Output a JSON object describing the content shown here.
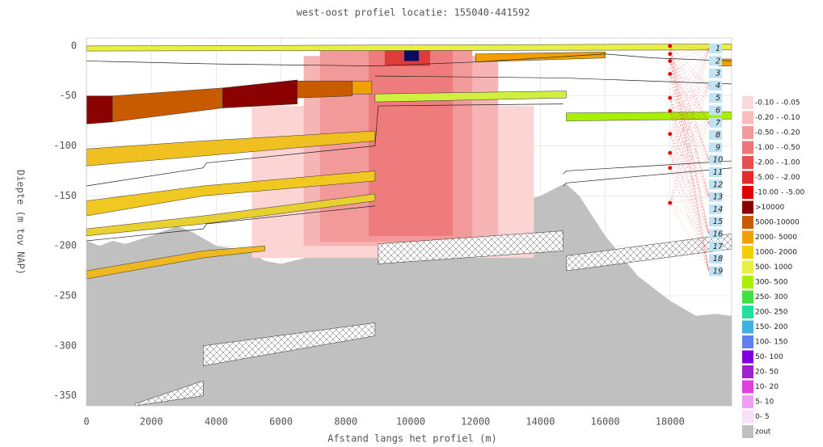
{
  "chart_data": {
    "type": "profile",
    "title": "west-oost profiel locatie: 155040-441592",
    "x_label": "Afstand langs het profiel (m)",
    "y_label": "Diepte (m tov NAP)",
    "xlim": [
      0,
      19900
    ],
    "ylim": [
      -360,
      8
    ],
    "xticks": [
      0,
      2000,
      4000,
      6000,
      8000,
      10000,
      12000,
      14000,
      16000,
      18000
    ],
    "yticks": [
      0,
      -50,
      -100,
      -150,
      -200,
      -250,
      -300,
      -350
    ],
    "grid": true,
    "zout": {
      "color": "#c0c0c0",
      "x": [
        0,
        400,
        800,
        1200,
        2000,
        2800,
        3200,
        4000,
        5000,
        5500,
        6000,
        7000,
        8000,
        9000,
        10000,
        11000,
        12000,
        13000,
        14000,
        14600,
        14800,
        15200,
        16000,
        17000,
        18000,
        18800,
        19400,
        19900
      ],
      "y": [
        -195,
        -200,
        -195,
        -198,
        -190,
        -180,
        -185,
        -200,
        -205,
        -215,
        -218,
        -210,
        -200,
        -190,
        -180,
        -170,
        -165,
        -160,
        -150,
        -140,
        -138,
        -150,
        -190,
        -230,
        -255,
        -270,
        -268,
        -270
      ]
    },
    "anomalies": [
      {
        "x": [
          5100,
          13800
        ],
        "y": [
          -60,
          -212
        ],
        "color": "#fcd4d4"
      },
      {
        "x": [
          6700,
          12700
        ],
        "y": [
          -10,
          -200
        ],
        "color": "#f7b4b4"
      },
      {
        "x": [
          7200,
          11900
        ],
        "y": [
          0,
          -196
        ],
        "color": "#f29a9a"
      },
      {
        "x": [
          8700,
          11300
        ],
        "y": [
          0,
          -190
        ],
        "color": "#ee7c7c"
      },
      {
        "x": [
          9200,
          10600
        ],
        "y": [
          0,
          -20
        ],
        "color": "#e03a3a"
      },
      {
        "x": [
          9800,
          10250
        ],
        "y": [
          -3,
          -15
        ],
        "color": "#0a0a60"
      }
    ],
    "bands": [
      {
        "x": [
          0,
          19900
        ],
        "top": [
          0,
          2
        ],
        "bottom": [
          -5,
          -4
        ],
        "color": "#e8f040"
      },
      {
        "x": [
          0,
          800
        ],
        "top": [
          -50,
          -50
        ],
        "bottom": [
          -78,
          -76
        ],
        "color": "#8b0000"
      },
      {
        "x": [
          800,
          4200
        ],
        "top": [
          -50,
          -42
        ],
        "bottom": [
          -76,
          -62
        ],
        "color": "#c85a00"
      },
      {
        "x": [
          4200,
          6500
        ],
        "top": [
          -42,
          -34
        ],
        "bottom": [
          -62,
          -58
        ],
        "color": "#8b0000"
      },
      {
        "x": [
          6500,
          8200
        ],
        "top": [
          -35,
          -35
        ],
        "bottom": [
          -52,
          -50
        ],
        "color": "#c85a00"
      },
      {
        "x": [
          8200,
          8800
        ],
        "top": [
          -35,
          -35
        ],
        "bottom": [
          -48,
          -48
        ],
        "color": "#f0a000"
      },
      {
        "x": [
          0,
          3600,
          8900
        ],
        "top": [
          -103,
          -95,
          -85
        ],
        "bottom": [
          -120,
          -110,
          -95
        ],
        "color": "#f0c020"
      },
      {
        "x": [
          0,
          3600,
          8900
        ],
        "top": [
          -155,
          -140,
          -125
        ],
        "bottom": [
          -170,
          -150,
          -135
        ],
        "color": "#f0c820"
      },
      {
        "x": [
          0,
          3600,
          8900
        ],
        "top": [
          -183,
          -170,
          -148
        ],
        "bottom": [
          -190,
          -178,
          -155
        ],
        "color": "#e8d030"
      },
      {
        "x": [
          0,
          3600,
          5500
        ],
        "top": [
          -225,
          -205,
          -200
        ],
        "bottom": [
          -233,
          -212,
          -205
        ],
        "color": "#f0b820"
      },
      {
        "x": [
          8900,
          14800
        ],
        "top": [
          -48,
          -45
        ],
        "bottom": [
          -56,
          -52
        ],
        "color": "#d0f040"
      },
      {
        "x": [
          14800,
          19900
        ],
        "top": [
          -67,
          -66
        ],
        "bottom": [
          -75,
          -73
        ],
        "color": "#a8f000"
      },
      {
        "x": [
          12000,
          16000
        ],
        "top": [
          -8,
          -6
        ],
        "bottom": [
          -16,
          -12
        ],
        "color": "#f0a000"
      },
      {
        "x": [
          19500,
          19900
        ],
        "top": [
          -13,
          -13
        ],
        "bottom": [
          -20,
          -20
        ],
        "color": "#f0a000"
      }
    ],
    "hatched": [
      {
        "x": [
          1500,
          3600
        ],
        "top": [
          -358,
          -335
        ],
        "bottom": [
          -360,
          -350
        ]
      },
      {
        "x": [
          3600,
          8900
        ],
        "top": [
          -300,
          -277
        ],
        "bottom": [
          -320,
          -290
        ]
      },
      {
        "x": [
          9000,
          14700
        ],
        "top": [
          -198,
          -185
        ],
        "bottom": [
          -218,
          -205
        ]
      },
      {
        "x": [
          14800,
          19900
        ],
        "top": [
          -210,
          -188
        ],
        "bottom": [
          -225,
          -203
        ]
      }
    ],
    "lines": [
      {
        "x": [
          0,
          4000,
          8900,
          12000,
          16000,
          17500,
          19900
        ],
        "y": [
          -15,
          -18,
          -20,
          -16,
          -8,
          -12,
          -15
        ]
      },
      {
        "x": [
          0,
          3600,
          3700,
          8900,
          9000,
          14700
        ],
        "y": [
          -140,
          -122,
          -117,
          -100,
          -60,
          -58
        ]
      },
      {
        "x": [
          0,
          3600,
          3700,
          8900
        ],
        "y": [
          -195,
          -183,
          -178,
          -160
        ]
      },
      {
        "x": [
          8900,
          14700,
          19900
        ],
        "y": [
          -30,
          -32,
          -38
        ]
      },
      {
        "x": [
          14700,
          14800,
          19900
        ],
        "y": [
          -128,
          -125,
          -115
        ]
      },
      {
        "x": [
          14700,
          14800,
          19900
        ],
        "y": [
          -140,
          -137,
          -122
        ]
      }
    ],
    "wells": {
      "color": "#e01010",
      "x": [
        18000,
        18000,
        18000,
        18000,
        18000,
        18000,
        18000,
        18000,
        18000,
        18000
      ],
      "y": [
        0,
        -8,
        -15,
        -28,
        -52,
        -65,
        -88,
        -107,
        -122,
        -157
      ]
    },
    "layer_labels": [
      "1",
      "2",
      "3",
      "4",
      "5",
      "6",
      "7",
      "8",
      "9",
      "10",
      "11",
      "12",
      "13",
      "14",
      "15",
      "16",
      "17",
      "18",
      "19"
    ],
    "legend": [
      {
        "label": "-0.10 - -0.05",
        "color": "#fcd9d9"
      },
      {
        "label": "-0.20 - -0.10",
        "color": "#f8bcbc"
      },
      {
        "label": "-0.50 - -0.20",
        "color": "#f29a9a"
      },
      {
        "label": "-1.00 - -0.50",
        "color": "#ec7676"
      },
      {
        "label": "-2.00 - -1.00",
        "color": "#e85050"
      },
      {
        "label": "-5.00 - -2.00",
        "color": "#e42a2a"
      },
      {
        "label": "-10.00 - -5.00",
        "color": "#e00000"
      },
      {
        "label": ">10000",
        "color": "#8b0000"
      },
      {
        "label": "5000-10000",
        "color": "#c85a00"
      },
      {
        "label": "2000- 5000",
        "color": "#f0a000"
      },
      {
        "label": "1000- 2000",
        "color": "#f0d000"
      },
      {
        "label": "500- 1000",
        "color": "#e8f040"
      },
      {
        "label": "300- 500",
        "color": "#a8f000"
      },
      {
        "label": "250- 300",
        "color": "#40e040"
      },
      {
        "label": "200- 250",
        "color": "#20e0a0"
      },
      {
        "label": "150- 200",
        "color": "#40b0e0"
      },
      {
        "label": "100- 150",
        "color": "#6080f0"
      },
      {
        "label": "50- 100",
        "color": "#8000e0"
      },
      {
        "label": "20- 50",
        "color": "#a020d0"
      },
      {
        "label": "10- 20",
        "color": "#e040e0"
      },
      {
        "label": "5- 10",
        "color": "#f0a0f0"
      },
      {
        "label": "0- 5",
        "color": "#f8e0f8"
      },
      {
        "label": "zout",
        "color": "#c0c0c0"
      }
    ]
  }
}
